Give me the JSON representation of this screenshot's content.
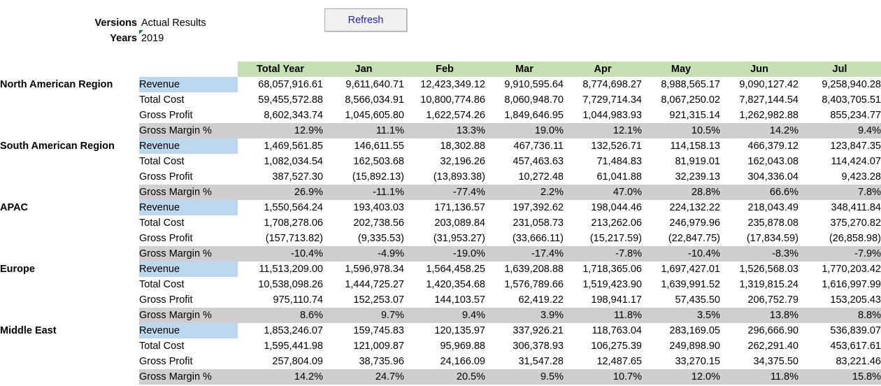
{
  "params": {
    "versions_label": "Versions",
    "versions_value": "Actual Results",
    "years_label": "Years",
    "years_value": "2019"
  },
  "refresh_label": "Refresh",
  "columns": [
    "Total Year",
    "Jan",
    "Feb",
    "Mar",
    "Apr",
    "May",
    "Jun",
    "Jul"
  ],
  "regions": [
    {
      "name": "North American Region",
      "rows": [
        {
          "metric": "Revenue",
          "values": [
            "68,057,916.61",
            "9,611,640.71",
            "12,423,349.12",
            "9,910,595.64",
            "8,774,698.27",
            "8,988,565.17",
            "9,090,127.42",
            "9,258,940.28"
          ]
        },
        {
          "metric": "Total Cost",
          "values": [
            "59,455,572.88",
            "8,566,034.91",
            "10,800,774.86",
            "8,060,948.70",
            "7,729,714.34",
            "8,067,250.02",
            "7,827,144.54",
            "8,403,705.51"
          ]
        },
        {
          "metric": "Gross Profit",
          "values": [
            "8,602,343.74",
            "1,045,605.80",
            "1,622,574.26",
            "1,849,646.95",
            "1,044,983.93",
            "921,315.14",
            "1,262,982.88",
            "855,234.77"
          ]
        },
        {
          "metric": "Gross Margin %",
          "values": [
            "12.9%",
            "11.1%",
            "13.3%",
            "19.0%",
            "12.1%",
            "10.5%",
            "14.2%",
            "9.4%"
          ]
        }
      ]
    },
    {
      "name": "South American Region",
      "rows": [
        {
          "metric": "Revenue",
          "values": [
            "1,469,561.85",
            "146,611.55",
            "18,302.88",
            "467,736.11",
            "132,526.71",
            "114,158.13",
            "466,379.12",
            "123,847.35"
          ]
        },
        {
          "metric": "Total Cost",
          "values": [
            "1,082,034.54",
            "162,503.68",
            "32,196.26",
            "457,463.63",
            "71,484.83",
            "81,919.01",
            "162,043.08",
            "114,424.07"
          ]
        },
        {
          "metric": "Gross Profit",
          "values": [
            "387,527.30",
            "(15,892.13)",
            "(13,893.38)",
            "10,272.48",
            "61,041.88",
            "32,239.13",
            "304,336.04",
            "9,423.28"
          ]
        },
        {
          "metric": "Gross Margin %",
          "values": [
            "26.9%",
            "-11.1%",
            "-77.4%",
            "2.2%",
            "47.0%",
            "28.8%",
            "66.6%",
            "7.8%"
          ]
        }
      ]
    },
    {
      "name": "APAC",
      "rows": [
        {
          "metric": "Revenue",
          "values": [
            "1,550,564.24",
            "193,403.03",
            "171,136.57",
            "197,392.62",
            "198,044.46",
            "224,132.22",
            "218,043.49",
            "348,411.84"
          ]
        },
        {
          "metric": "Total Cost",
          "values": [
            "1,708,278.06",
            "202,738.56",
            "203,089.84",
            "231,058.73",
            "213,262.06",
            "246,979.96",
            "235,878.08",
            "375,270.82"
          ]
        },
        {
          "metric": "Gross Profit",
          "values": [
            "(157,713.82)",
            "(9,335.53)",
            "(31,953.27)",
            "(33,666.11)",
            "(15,217.59)",
            "(22,847.75)",
            "(17,834.59)",
            "(26,858.98)"
          ]
        },
        {
          "metric": "Gross Margin %",
          "values": [
            "-10.4%",
            "-4.9%",
            "-19.0%",
            "-17.4%",
            "-7.8%",
            "-10.4%",
            "-8.3%",
            "-7.9%"
          ]
        }
      ]
    },
    {
      "name": "Europe",
      "rows": [
        {
          "metric": "Revenue",
          "values": [
            "11,513,209.00",
            "1,596,978.34",
            "1,564,458.25",
            "1,639,208.88",
            "1,718,365.06",
            "1,697,427.01",
            "1,526,568.03",
            "1,770,203.42"
          ]
        },
        {
          "metric": "Total Cost",
          "values": [
            "10,538,098.26",
            "1,444,725.27",
            "1,420,354.68",
            "1,576,789.66",
            "1,519,423.90",
            "1,639,991.52",
            "1,319,815.24",
            "1,616,997.99"
          ]
        },
        {
          "metric": "Gross Profit",
          "values": [
            "975,110.74",
            "152,253.07",
            "144,103.57",
            "62,419.22",
            "198,941.17",
            "57,435.50",
            "206,752.79",
            "153,205.43"
          ]
        },
        {
          "metric": "Gross Margin %",
          "values": [
            "8.6%",
            "9.7%",
            "9.4%",
            "3.9%",
            "11.8%",
            "3.5%",
            "13.8%",
            "8.8%"
          ]
        }
      ]
    },
    {
      "name": "Middle East",
      "rows": [
        {
          "metric": "Revenue",
          "values": [
            "1,853,246.07",
            "159,745.83",
            "120,135.97",
            "337,926.21",
            "118,763.04",
            "283,169.05",
            "296,666.90",
            "536,839.07"
          ]
        },
        {
          "metric": "Total Cost",
          "values": [
            "1,595,441.98",
            "121,009.87",
            "95,969.88",
            "306,378.93",
            "106,275.39",
            "249,898.90",
            "262,291.40",
            "453,617.61"
          ]
        },
        {
          "metric": "Gross Profit",
          "values": [
            "257,804.09",
            "38,735.96",
            "24,166.09",
            "31,547.28",
            "12,487.65",
            "33,270.15",
            "34,375.50",
            "83,221.46"
          ]
        },
        {
          "metric": "Gross Margin %",
          "values": [
            "14.2%",
            "24.7%",
            "20.5%",
            "9.5%",
            "10.7%",
            "12.0%",
            "11.8%",
            "15.8%"
          ]
        }
      ]
    }
  ],
  "colors": {
    "header_bg": "#c6e0b4",
    "revenue_bg": "#bdd7ee",
    "margin_bg": "#d0cece",
    "button_text": "#1f1fd0"
  }
}
